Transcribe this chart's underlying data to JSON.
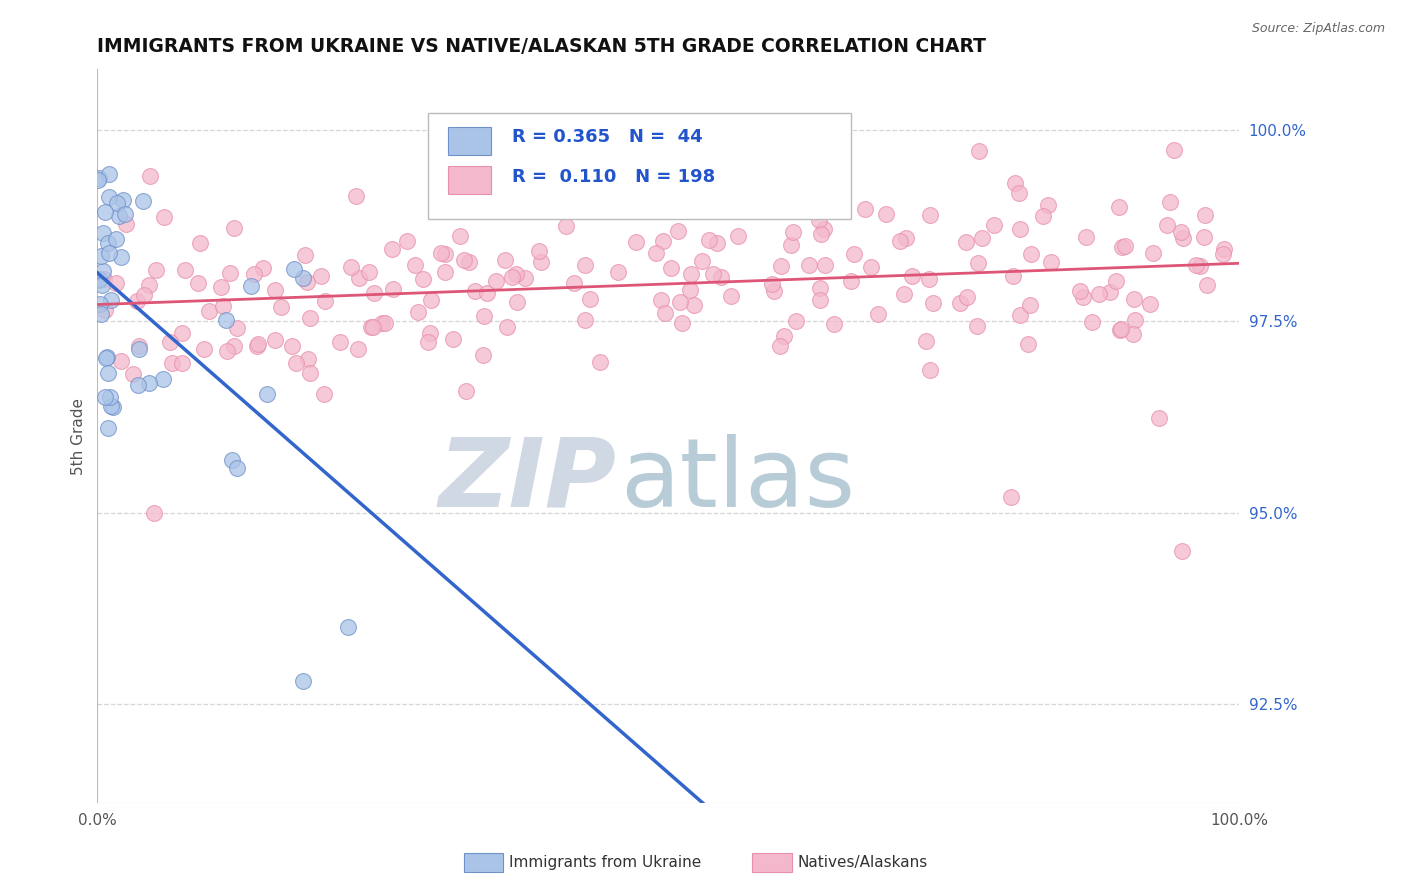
{
  "title": "IMMIGRANTS FROM UKRAINE VS NATIVE/ALASKAN 5TH GRADE CORRELATION CHART",
  "source": "Source: ZipAtlas.com",
  "ylabel": "5th Grade",
  "ylabel_right_ticks": [
    92.5,
    95.0,
    97.5,
    100.0
  ],
  "ylabel_right_labels": [
    "92.5%",
    "95.0%",
    "97.5%",
    "100.0%"
  ],
  "xmin": 0.0,
  "xmax": 100.0,
  "ymin": 91.2,
  "ymax": 100.8,
  "blue_R": 0.365,
  "blue_N": 44,
  "pink_R": 0.11,
  "pink_N": 198,
  "blue_color": "#aac4e8",
  "pink_color": "#f4b8cc",
  "blue_edge_color": "#7090c8",
  "pink_edge_color": "#e890a8",
  "blue_line_color": "#3366cc",
  "pink_line_color": "#dd5577",
  "legend_R_color": "#2255cc",
  "watermark_zip_color": "#d0d8e4",
  "watermark_atlas_color": "#b8ccd8",
  "background_color": "#ffffff",
  "grid_color": "#cccccc",
  "title_color": "#111111",
  "axis_label_color": "#555555",
  "right_tick_color": "#3366cc"
}
